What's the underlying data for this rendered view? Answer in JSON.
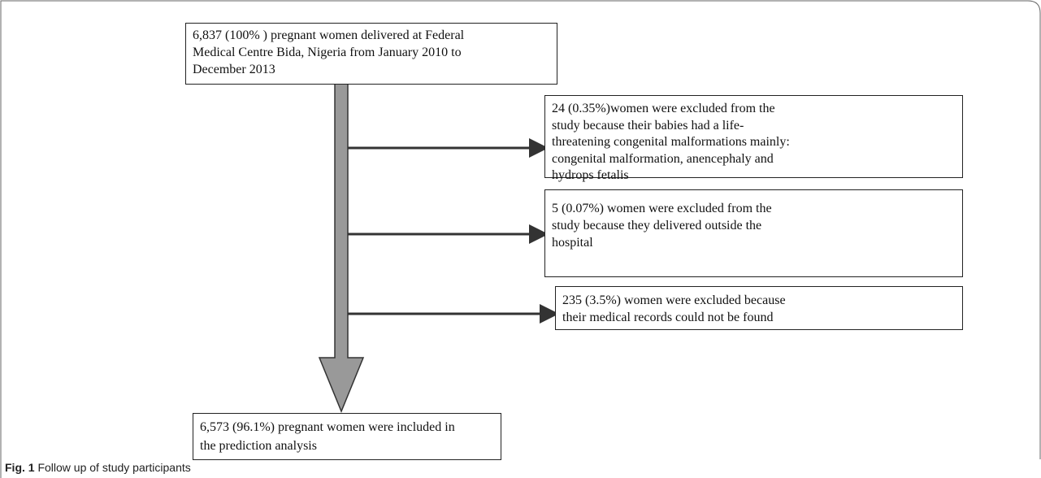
{
  "nodes": [
    {
      "lines": [
        "6,837 (100% ) pregnant women delivered at Federal",
        "Medical Centre Bida, Nigeria from January 2010 to",
        "December 2013"
      ]
    },
    {
      "lines": [
        "24 (0.35%)women  were excluded from the",
        "study because their babies had a life-",
        "threatening congenital malformations  mainly:",
        "congenital malformation,  anencephaly and",
        "hydrops fetalis"
      ]
    },
    {
      "lines": [
        "5 (0.07%)  women were excluded from the",
        "study because they delivered outside the",
        "hospital"
      ]
    },
    {
      "lines": [
        "235 (3.5%) women were excluded because",
        "their medical records could not be found"
      ]
    },
    {
      "lines": [
        "6,573 (96.1%) pregnant women were included in",
        "the prediction analysis"
      ]
    }
  ],
  "caption": {
    "label": "Fig. 1",
    "text": "Follow up of study participants"
  }
}
